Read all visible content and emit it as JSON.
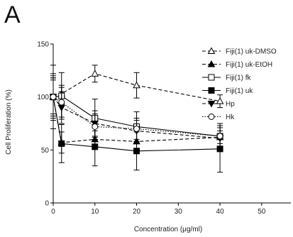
{
  "panel_label": "A",
  "chart_data": {
    "type": "line",
    "title": "",
    "xlabel": "Concentration (μg/ml)",
    "ylabel": "Cell Proliferation (%)",
    "xlim": [
      0,
      57
    ],
    "ylim": [
      0,
      150
    ],
    "xticks": [
      0,
      10,
      20,
      30,
      40,
      50
    ],
    "yticks": [
      0,
      50,
      100,
      150
    ],
    "grid": false,
    "legend_position": "top-right",
    "x": [
      0,
      2,
      10,
      20,
      40
    ],
    "series": [
      {
        "name": "Fiji(1) uk-DMSO",
        "values": [
          100,
          103,
          122,
          111,
          96
        ],
        "errors": [
          20,
          8,
          8,
          12,
          6
        ],
        "line": "dashed",
        "marker": "triangle-up",
        "filled": false
      },
      {
        "name": "Fiji(1) uk-EtOH",
        "values": [
          100,
          57,
          60,
          58,
          62
        ],
        "errors": [
          22,
          10,
          8,
          10,
          6
        ],
        "line": "dashed",
        "marker": "triangle-up",
        "filled": true
      },
      {
        "name": "Fiji(1) fk",
        "values": [
          100,
          101,
          80,
          72,
          63
        ],
        "errors": [
          18,
          22,
          18,
          14,
          12
        ],
        "line": "solid",
        "marker": "square",
        "filled": false
      },
      {
        "name": "Fiji(1) uk",
        "values": [
          100,
          56,
          53,
          49,
          51
        ],
        "errors": [
          30,
          18,
          18,
          18,
          22
        ],
        "line": "solid",
        "marker": "square",
        "filled": true
      },
      {
        "name": "Hp",
        "values": [
          100,
          90,
          75,
          68,
          61
        ],
        "errors": [
          18,
          15,
          12,
          10,
          10
        ],
        "line": "dashed",
        "marker": "triangle-down",
        "filled": true
      },
      {
        "name": "Hk",
        "values": [
          100,
          95,
          72,
          70,
          63
        ],
        "errors": [
          16,
          14,
          12,
          10,
          10
        ],
        "line": "dotted",
        "marker": "circle",
        "filled": false
      }
    ]
  }
}
